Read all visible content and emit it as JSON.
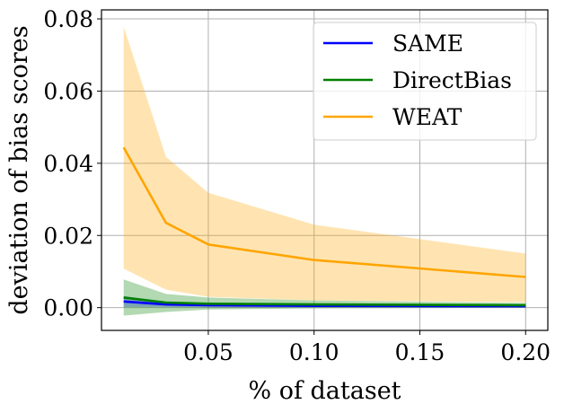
{
  "chart_data": {
    "type": "line",
    "title": "",
    "xlabel": "% of dataset",
    "ylabel": "deviation of bias scores",
    "xlim": [
      -0.0005,
      0.2105
    ],
    "ylim": [
      -0.0063,
      0.0825
    ],
    "grid": true,
    "legend_position": "top-right",
    "x": [
      0.01,
      0.03,
      0.05,
      0.1,
      0.2
    ],
    "xticks": [
      0.05,
      0.1,
      0.15,
      0.2
    ],
    "xtick_labels": [
      "0.05",
      "0.10",
      "0.15",
      "0.20"
    ],
    "yticks": [
      0.0,
      0.02,
      0.04,
      0.06,
      0.08
    ],
    "ytick_labels": [
      "0.00",
      "0.02",
      "0.04",
      "0.06",
      "0.08"
    ],
    "series": [
      {
        "name": "SAME",
        "color": "#0000ff",
        "values": [
          0.0017,
          0.0009,
          0.0007,
          0.0005,
          0.0004
        ],
        "lower": [
          0.0002,
          0.0002,
          0.0001,
          0.0001,
          0.0001
        ],
        "upper": [
          0.0032,
          0.0016,
          0.0013,
          0.0009,
          0.0007
        ]
      },
      {
        "name": "DirectBias",
        "color": "#008000",
        "values": [
          0.0028,
          0.0014,
          0.0011,
          0.0009,
          0.0007
        ],
        "lower": [
          -0.0022,
          -0.0012,
          -0.0005,
          -0.0002,
          0.0
        ],
        "upper": [
          0.0078,
          0.0038,
          0.0028,
          0.002,
          0.0013
        ]
      },
      {
        "name": "WEAT",
        "color": "#ffa500",
        "values": [
          0.0444,
          0.0235,
          0.0175,
          0.0132,
          0.0085
        ],
        "lower": [
          0.0108,
          0.005,
          0.003,
          0.002,
          0.0015
        ],
        "upper": [
          0.0778,
          0.0418,
          0.0318,
          0.023,
          0.015
        ]
      }
    ]
  }
}
